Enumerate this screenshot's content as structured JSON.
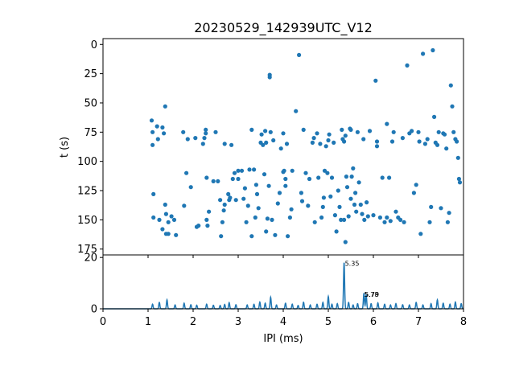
{
  "chart_data": [
    {
      "type": "scatter",
      "title": "20230529_142939UTC_V12",
      "xlabel": "",
      "ylabel": "t (s)",
      "xlim": [
        0,
        8
      ],
      "ylim": [
        180,
        -5
      ],
      "y_inverted": true,
      "yticks": [
        "0",
        "25",
        "50",
        "75",
        "100",
        "125",
        "150",
        "175"
      ],
      "color": "#1f77b4",
      "points": [
        [
          1.08,
          65
        ],
        [
          1.1,
          75
        ],
        [
          1.1,
          86
        ],
        [
          1.12,
          128
        ],
        [
          1.12,
          148
        ],
        [
          1.2,
          70
        ],
        [
          1.22,
          81
        ],
        [
          1.25,
          150
        ],
        [
          1.32,
          71
        ],
        [
          1.35,
          76
        ],
        [
          1.38,
          53
        ],
        [
          1.38,
          137
        ],
        [
          1.4,
          145
        ],
        [
          1.4,
          162
        ],
        [
          1.45,
          162
        ],
        [
          1.45,
          152
        ],
        [
          1.32,
          158
        ],
        [
          1.52,
          147
        ],
        [
          1.58,
          150
        ],
        [
          1.62,
          163
        ],
        [
          1.78,
          75
        ],
        [
          1.8,
          138
        ],
        [
          1.85,
          110
        ],
        [
          1.88,
          81
        ],
        [
          1.95,
          122
        ],
        [
          2.05,
          80
        ],
        [
          2.08,
          156
        ],
        [
          2.12,
          155
        ],
        [
          2.22,
          85
        ],
        [
          2.25,
          80
        ],
        [
          2.28,
          73
        ],
        [
          2.28,
          76
        ],
        [
          2.3,
          114
        ],
        [
          2.3,
          150
        ],
        [
          2.32,
          155
        ],
        [
          2.35,
          143
        ],
        [
          2.45,
          117
        ],
        [
          2.5,
          75
        ],
        [
          2.55,
          117
        ],
        [
          2.6,
          133
        ],
        [
          2.62,
          164
        ],
        [
          2.65,
          152
        ],
        [
          2.68,
          142
        ],
        [
          2.7,
          137
        ],
        [
          2.7,
          85
        ],
        [
          2.78,
          128
        ],
        [
          2.8,
          133
        ],
        [
          2.82,
          131
        ],
        [
          2.85,
          86
        ],
        [
          2.88,
          115
        ],
        [
          2.92,
          110
        ],
        [
          2.95,
          133
        ],
        [
          3.0,
          108
        ],
        [
          3.0,
          115
        ],
        [
          3.08,
          108
        ],
        [
          3.12,
          132
        ],
        [
          3.15,
          123
        ],
        [
          3.18,
          152
        ],
        [
          3.22,
          138
        ],
        [
          3.25,
          107
        ],
        [
          3.3,
          164
        ],
        [
          3.3,
          73
        ],
        [
          3.35,
          107
        ],
        [
          3.38,
          148
        ],
        [
          3.4,
          120
        ],
        [
          3.42,
          128
        ],
        [
          3.45,
          140
        ],
        [
          3.5,
          84
        ],
        [
          3.52,
          77
        ],
        [
          3.55,
          86
        ],
        [
          3.58,
          111
        ],
        [
          3.6,
          74
        ],
        [
          3.62,
          84
        ],
        [
          3.62,
          160
        ],
        [
          3.65,
          149
        ],
        [
          3.68,
          121
        ],
        [
          3.7,
          28
        ],
        [
          3.7,
          26
        ],
        [
          3.72,
          75
        ],
        [
          3.75,
          150
        ],
        [
          3.78,
          82
        ],
        [
          3.82,
          163
        ],
        [
          3.88,
          136
        ],
        [
          3.92,
          127
        ],
        [
          3.95,
          89
        ],
        [
          4.0,
          76
        ],
        [
          4.0,
          109
        ],
        [
          4.02,
          108
        ],
        [
          4.05,
          115
        ],
        [
          4.05,
          121
        ],
        [
          4.08,
          85
        ],
        [
          4.1,
          164
        ],
        [
          4.15,
          148
        ],
        [
          4.18,
          141
        ],
        [
          4.2,
          108
        ],
        [
          4.28,
          57
        ],
        [
          4.35,
          9
        ],
        [
          4.4,
          127
        ],
        [
          4.42,
          134
        ],
        [
          4.45,
          73
        ],
        [
          4.5,
          110
        ],
        [
          4.55,
          138
        ],
        [
          4.58,
          115
        ],
        [
          4.65,
          84
        ],
        [
          4.68,
          80
        ],
        [
          4.7,
          152
        ],
        [
          4.75,
          76
        ],
        [
          4.78,
          114
        ],
        [
          4.82,
          85
        ],
        [
          4.85,
          148
        ],
        [
          4.88,
          139
        ],
        [
          4.9,
          131
        ],
        [
          4.92,
          108
        ],
        [
          4.95,
          87
        ],
        [
          4.98,
          110
        ],
        [
          5.0,
          82
        ],
        [
          5.02,
          77
        ],
        [
          5.05,
          130
        ],
        [
          5.08,
          114
        ],
        [
          5.12,
          84
        ],
        [
          5.15,
          146
        ],
        [
          5.18,
          160
        ],
        [
          5.22,
          125
        ],
        [
          5.25,
          139
        ],
        [
          5.28,
          150
        ],
        [
          5.3,
          73
        ],
        [
          5.32,
          81
        ],
        [
          5.35,
          83
        ],
        [
          5.35,
          150
        ],
        [
          5.38,
          169
        ],
        [
          5.38,
          78
        ],
        [
          5.4,
          113
        ],
        [
          5.42,
          122
        ],
        [
          5.45,
          147
        ],
        [
          5.48,
          72
        ],
        [
          5.5,
          73
        ],
        [
          5.5,
          132
        ],
        [
          5.52,
          113
        ],
        [
          5.55,
          106
        ],
        [
          5.58,
          137
        ],
        [
          5.6,
          127
        ],
        [
          5.62,
          143
        ],
        [
          5.65,
          75
        ],
        [
          5.68,
          118
        ],
        [
          5.72,
          137
        ],
        [
          5.75,
          145
        ],
        [
          5.78,
          81
        ],
        [
          5.8,
          150
        ],
        [
          5.85,
          135
        ],
        [
          5.88,
          147
        ],
        [
          5.92,
          74
        ],
        [
          6.0,
          146
        ],
        [
          6.05,
          31
        ],
        [
          6.08,
          83
        ],
        [
          6.08,
          87
        ],
        [
          6.15,
          148
        ],
        [
          6.2,
          114
        ],
        [
          6.25,
          152
        ],
        [
          6.3,
          68
        ],
        [
          6.3,
          148
        ],
        [
          6.35,
          114
        ],
        [
          6.38,
          151
        ],
        [
          6.42,
          83
        ],
        [
          6.45,
          75
        ],
        [
          6.5,
          143
        ],
        [
          6.55,
          148
        ],
        [
          6.6,
          150
        ],
        [
          6.65,
          80
        ],
        [
          6.68,
          152
        ],
        [
          6.75,
          18
        ],
        [
          6.8,
          76
        ],
        [
          6.85,
          74
        ],
        [
          6.9,
          127
        ],
        [
          6.95,
          120
        ],
        [
          7.0,
          75
        ],
        [
          7.02,
          83
        ],
        [
          7.05,
          162
        ],
        [
          7.1,
          8
        ],
        [
          7.15,
          85
        ],
        [
          7.2,
          81
        ],
        [
          7.25,
          152
        ],
        [
          7.28,
          139
        ],
        [
          7.32,
          5
        ],
        [
          7.35,
          62
        ],
        [
          7.38,
          84
        ],
        [
          7.42,
          86
        ],
        [
          7.45,
          75
        ],
        [
          7.5,
          140
        ],
        [
          7.55,
          76
        ],
        [
          7.58,
          77
        ],
        [
          7.62,
          89
        ],
        [
          7.65,
          152
        ],
        [
          7.68,
          144
        ],
        [
          7.72,
          35
        ],
        [
          7.75,
          53
        ],
        [
          7.78,
          75
        ],
        [
          7.82,
          81
        ],
        [
          7.85,
          83
        ],
        [
          7.88,
          97
        ],
        [
          7.9,
          115
        ],
        [
          7.92,
          118
        ]
      ]
    },
    {
      "type": "line",
      "title": "",
      "xlabel": "IPI (ms)",
      "ylabel": "",
      "xlim": [
        0,
        8
      ],
      "ylim": [
        0,
        21
      ],
      "xticks": [
        "0",
        "1",
        "2",
        "3",
        "4",
        "5",
        "6",
        "7",
        "8"
      ],
      "yticks": [
        "0",
        "20"
      ],
      "color": "#1f77b4",
      "peaks": [
        [
          1.1,
          1.8
        ],
        [
          1.25,
          2.5
        ],
        [
          1.42,
          3.5
        ],
        [
          1.6,
          1.5
        ],
        [
          1.8,
          2.2
        ],
        [
          1.95,
          1.6
        ],
        [
          2.08,
          1.4
        ],
        [
          2.3,
          1.8
        ],
        [
          2.45,
          1.4
        ],
        [
          2.6,
          1.3
        ],
        [
          2.7,
          1.7
        ],
        [
          2.8,
          2.4
        ],
        [
          2.95,
          1.6
        ],
        [
          3.2,
          1.5
        ],
        [
          3.35,
          1.8
        ],
        [
          3.48,
          2.6
        ],
        [
          3.6,
          2.2
        ],
        [
          3.72,
          4.5
        ],
        [
          3.85,
          1.5
        ],
        [
          4.05,
          2.2
        ],
        [
          4.2,
          1.8
        ],
        [
          4.33,
          1.3
        ],
        [
          4.45,
          2.6
        ],
        [
          4.6,
          1.5
        ],
        [
          4.75,
          1.8
        ],
        [
          4.88,
          2.5
        ],
        [
          5.0,
          4.8
        ],
        [
          5.08,
          1.8
        ],
        [
          5.2,
          2.0
        ],
        [
          5.35,
          18.0
        ],
        [
          5.45,
          2.5
        ],
        [
          5.55,
          1.5
        ],
        [
          5.65,
          2.0
        ],
        [
          5.79,
          6.0
        ],
        [
          5.84,
          5.5
        ],
        [
          5.95,
          2.0
        ],
        [
          6.1,
          2.3
        ],
        [
          6.25,
          1.8
        ],
        [
          6.38,
          1.5
        ],
        [
          6.5,
          2.0
        ],
        [
          6.65,
          1.6
        ],
        [
          6.8,
          1.5
        ],
        [
          6.95,
          2.5
        ],
        [
          7.1,
          1.5
        ],
        [
          7.28,
          2.0
        ],
        [
          7.42,
          3.5
        ],
        [
          7.55,
          2.2
        ],
        [
          7.7,
          1.8
        ],
        [
          7.82,
          2.6
        ],
        [
          7.95,
          2.0
        ]
      ],
      "annotations": [
        {
          "x": 5.35,
          "y": 18.0,
          "text": "5.35"
        },
        {
          "x": 5.78,
          "y": 6.0,
          "text": "5.78"
        },
        {
          "x": 5.79,
          "y": 6.0,
          "text": "5.79"
        }
      ]
    }
  ]
}
